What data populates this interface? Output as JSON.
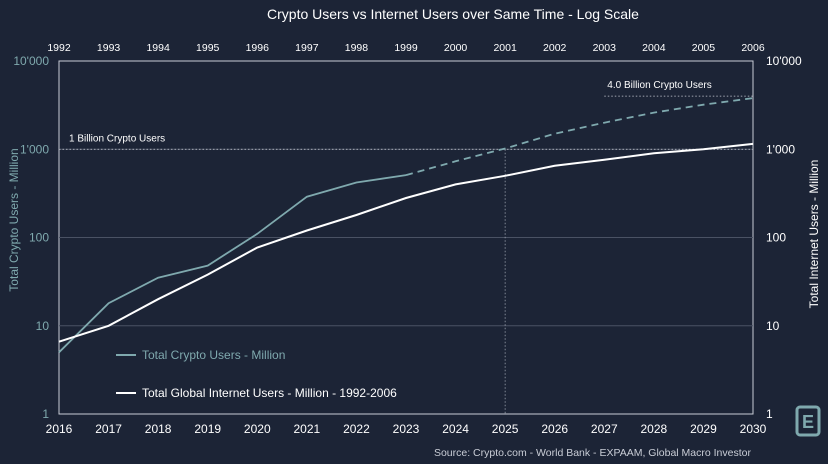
{
  "chart_data": {
    "type": "line",
    "title": "Crypto Users vs Internet Users over Same Time - Log Scale",
    "x_bottom": [
      "2016",
      "2017",
      "2018",
      "2019",
      "2020",
      "2021",
      "2022",
      "2023",
      "2024",
      "2025",
      "2026",
      "2027",
      "2028",
      "2029",
      "2030"
    ],
    "x_top": [
      "1992",
      "1993",
      "1994",
      "1995",
      "1996",
      "1997",
      "1998",
      "1999",
      "2000",
      "2001",
      "2002",
      "2003",
      "2004",
      "2005",
      "2006"
    ],
    "ylabel_left": "Total Crypto Users - Million",
    "ylabel_right": "Total Internet Users - Million",
    "y_scale": "log",
    "ylim": [
      1,
      10000
    ],
    "y_ticks": [
      1,
      10,
      100,
      1000,
      10000
    ],
    "y_tick_labels": [
      "1",
      "10",
      "100",
      "1'000",
      "10'000"
    ],
    "series": [
      {
        "name": "Total Crypto Users - Million",
        "axis": "left",
        "color": "#7fa9ae",
        "x": [
          2016,
          2017,
          2018,
          2019,
          2020,
          2021,
          2022,
          2023
        ],
        "values": [
          5,
          18,
          35,
          48,
          110,
          290,
          420,
          510
        ],
        "projection": {
          "x": [
            2023,
            2024,
            2025,
            2026,
            2027,
            2028,
            2029,
            2030
          ],
          "values": [
            510,
            730,
            1020,
            1500,
            2000,
            2600,
            3200,
            3800
          ]
        }
      },
      {
        "name": "Total Global Internet Users - Million - 1992-2006",
        "axis": "right",
        "color": "#ffffff",
        "x": [
          2016,
          2017,
          2018,
          2019,
          2020,
          2021,
          2022,
          2023,
          2024,
          2025,
          2026,
          2027,
          2028,
          2029,
          2030
        ],
        "values": [
          6.6,
          10,
          20,
          38,
          77,
          120,
          180,
          280,
          400,
          500,
          650,
          760,
          900,
          1000,
          1150
        ]
      }
    ],
    "annotations": [
      {
        "text": "1 Billion Crypto Users",
        "value": 1000,
        "x_from": 2016,
        "x_to": 2030
      },
      {
        "text": "4.0 Billion Crypto Users",
        "value": 4000,
        "x_from": 2027,
        "x_to": 2030
      }
    ],
    "marker_x": 2025,
    "source": "Source:   Crypto.com - World Bank - EXPAAM, Global Macro Investor",
    "logo": "E"
  }
}
